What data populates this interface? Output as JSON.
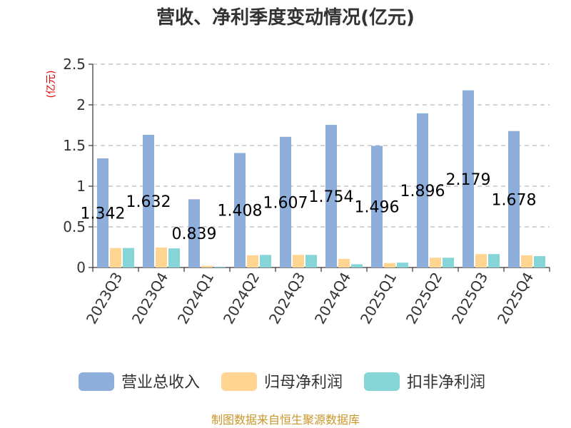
{
  "chart_data": {
    "type": "bar",
    "title": "营收、净利季度变动情况(亿元)",
    "unit_label": "(亿元)",
    "categories": [
      "2023Q3",
      "2023Q4",
      "2024Q1",
      "2024Q2",
      "2024Q3",
      "2024Q4",
      "2025Q1",
      "2025Q2",
      "2025Q3",
      "2025Q4"
    ],
    "series": [
      {
        "name": "营业总收入",
        "color": "#8eaedc",
        "values": [
          1.342,
          1.632,
          0.839,
          1.408,
          1.607,
          1.754,
          1.496,
          1.896,
          2.179,
          1.678
        ]
      },
      {
        "name": "归母净利润",
        "color": "#ffd591",
        "values": [
          0.24,
          0.245,
          0.02,
          0.15,
          0.155,
          0.105,
          0.055,
          0.12,
          0.165,
          0.15
        ]
      },
      {
        "name": "扣非净利润",
        "color": "#86d6d8",
        "values": [
          0.24,
          0.235,
          0.01,
          0.155,
          0.155,
          0.04,
          0.06,
          0.12,
          0.165,
          0.14
        ]
      }
    ],
    "data_labels": [
      "1.342",
      "1.632",
      "0.839",
      "1.408",
      "1.607",
      "1.754",
      "1.496",
      "1.896",
      "2.179",
      "1.678"
    ],
    "ylim": [
      0,
      2.5
    ],
    "yticks": [
      "0",
      "0.5",
      "1",
      "1.5",
      "2",
      "2.5"
    ],
    "grid": true,
    "legend_position": "bottom"
  },
  "source": "制图数据来自恒生聚源数据库"
}
